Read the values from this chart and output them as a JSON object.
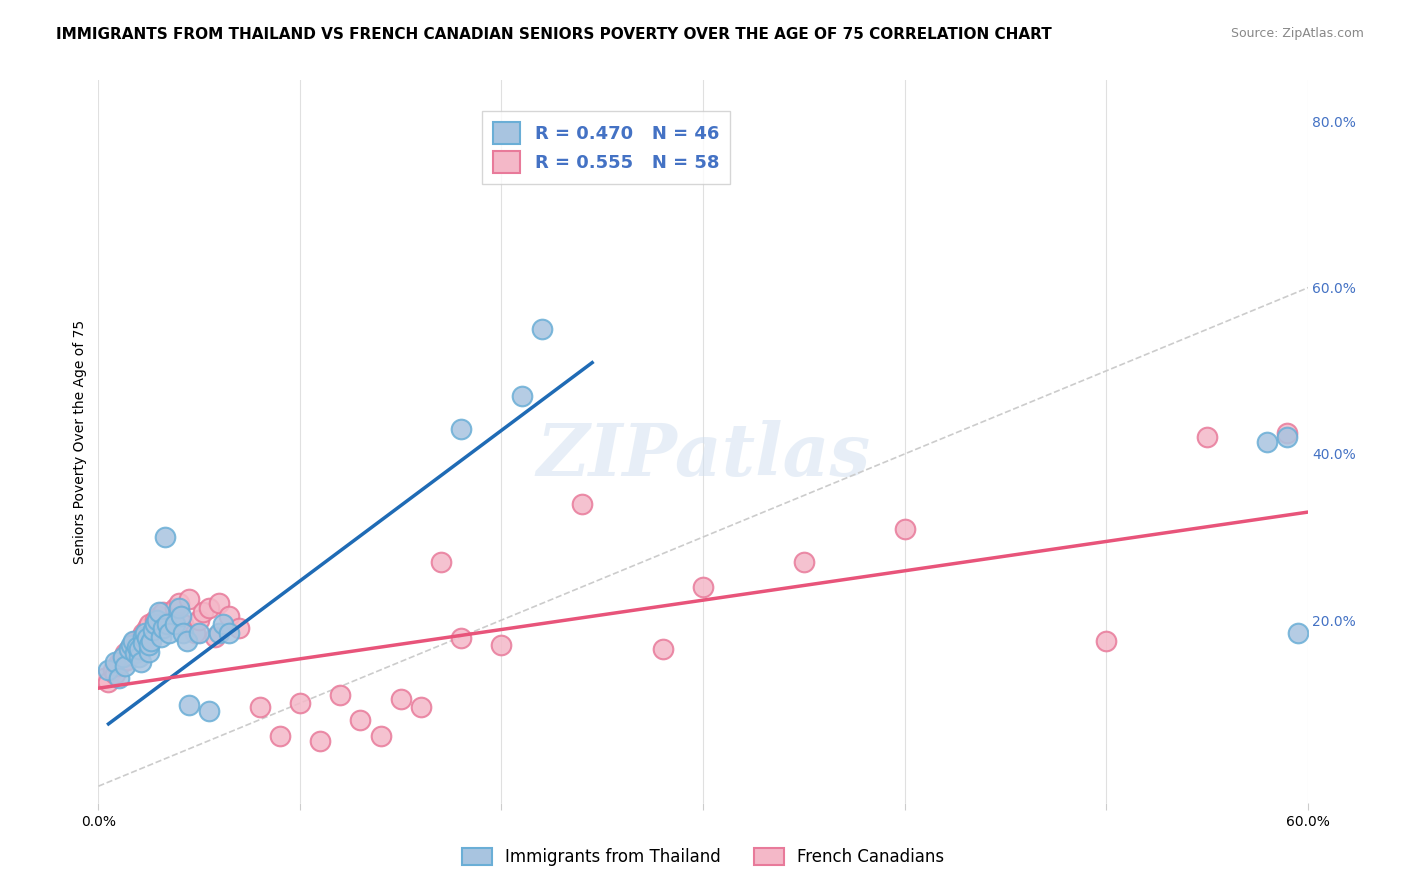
{
  "title": "IMMIGRANTS FROM THAILAND VS FRENCH CANADIAN SENIORS POVERTY OVER THE AGE OF 75 CORRELATION CHART",
  "source": "Source: ZipAtlas.com",
  "xlabel": "",
  "ylabel": "Seniors Poverty Over the Age of 75",
  "xlim": [
    0.0,
    0.6
  ],
  "ylim": [
    -0.02,
    0.85
  ],
  "xticks": [
    0.0,
    0.1,
    0.2,
    0.3,
    0.4,
    0.5,
    0.6
  ],
  "xticklabels": [
    "0.0%",
    "",
    "",
    "",
    "",
    "",
    "60.0%"
  ],
  "right_yticks": [
    0.0,
    0.2,
    0.4,
    0.6,
    0.8
  ],
  "right_yticklabels": [
    "",
    "20.0%",
    "40.0%",
    "60.0%",
    "80.0%"
  ],
  "blue_color": "#a8c4e0",
  "blue_edge": "#6aaed6",
  "pink_color": "#f4b8c8",
  "pink_edge": "#e87a9a",
  "blue_line_color": "#1f6bb5",
  "pink_line_color": "#e8547a",
  "diag_color": "#cccccc",
  "legend_R_blue": "R = 0.470",
  "legend_N_blue": "N = 46",
  "legend_R_pink": "R = 0.555",
  "legend_N_pink": "N = 58",
  "legend_label_blue": "Immigrants from Thailand",
  "legend_label_pink": "French Canadians",
  "watermark": "ZIPatlas",
  "title_fontsize": 11,
  "axis_label_fontsize": 10,
  "tick_fontsize": 10,
  "blue_scatter_x": [
    0.005,
    0.008,
    0.01,
    0.012,
    0.013,
    0.015,
    0.016,
    0.017,
    0.018,
    0.019,
    0.02,
    0.02,
    0.021,
    0.022,
    0.022,
    0.023,
    0.024,
    0.025,
    0.025,
    0.026,
    0.027,
    0.028,
    0.029,
    0.03,
    0.031,
    0.032,
    0.033,
    0.034,
    0.035,
    0.038,
    0.04,
    0.041,
    0.042,
    0.044,
    0.045,
    0.05,
    0.055,
    0.06,
    0.062,
    0.065,
    0.18,
    0.21,
    0.22,
    0.58,
    0.59,
    0.595
  ],
  "blue_scatter_y": [
    0.14,
    0.15,
    0.13,
    0.155,
    0.145,
    0.165,
    0.17,
    0.175,
    0.16,
    0.168,
    0.155,
    0.165,
    0.15,
    0.18,
    0.172,
    0.185,
    0.178,
    0.162,
    0.17,
    0.175,
    0.188,
    0.195,
    0.2,
    0.21,
    0.18,
    0.19,
    0.3,
    0.195,
    0.185,
    0.195,
    0.215,
    0.205,
    0.185,
    0.175,
    0.098,
    0.185,
    0.09,
    0.185,
    0.195,
    0.185,
    0.43,
    0.47,
    0.55,
    0.415,
    0.42,
    0.185
  ],
  "pink_scatter_x": [
    0.003,
    0.005,
    0.007,
    0.008,
    0.009,
    0.01,
    0.011,
    0.012,
    0.013,
    0.014,
    0.015,
    0.016,
    0.017,
    0.018,
    0.019,
    0.02,
    0.021,
    0.022,
    0.023,
    0.024,
    0.025,
    0.026,
    0.028,
    0.03,
    0.032,
    0.035,
    0.038,
    0.04,
    0.042,
    0.045,
    0.048,
    0.05,
    0.052,
    0.055,
    0.058,
    0.06,
    0.065,
    0.07,
    0.08,
    0.09,
    0.1,
    0.11,
    0.12,
    0.13,
    0.14,
    0.15,
    0.16,
    0.17,
    0.18,
    0.2,
    0.24,
    0.28,
    0.3,
    0.35,
    0.4,
    0.5,
    0.55,
    0.59
  ],
  "pink_scatter_y": [
    0.13,
    0.125,
    0.14,
    0.135,
    0.145,
    0.15,
    0.148,
    0.155,
    0.16,
    0.152,
    0.165,
    0.158,
    0.17,
    0.175,
    0.162,
    0.168,
    0.18,
    0.185,
    0.178,
    0.19,
    0.195,
    0.185,
    0.2,
    0.205,
    0.21,
    0.198,
    0.215,
    0.22,
    0.195,
    0.225,
    0.185,
    0.2,
    0.21,
    0.215,
    0.18,
    0.22,
    0.205,
    0.19,
    0.095,
    0.06,
    0.1,
    0.055,
    0.11,
    0.08,
    0.06,
    0.105,
    0.095,
    0.27,
    0.178,
    0.17,
    0.34,
    0.165,
    0.24,
    0.27,
    0.31,
    0.175,
    0.42,
    0.425
  ],
  "blue_line_x": [
    0.005,
    0.245
  ],
  "blue_line_y": [
    0.075,
    0.51
  ],
  "pink_line_x": [
    0.0,
    0.6
  ],
  "pink_line_y": [
    0.118,
    0.33
  ]
}
